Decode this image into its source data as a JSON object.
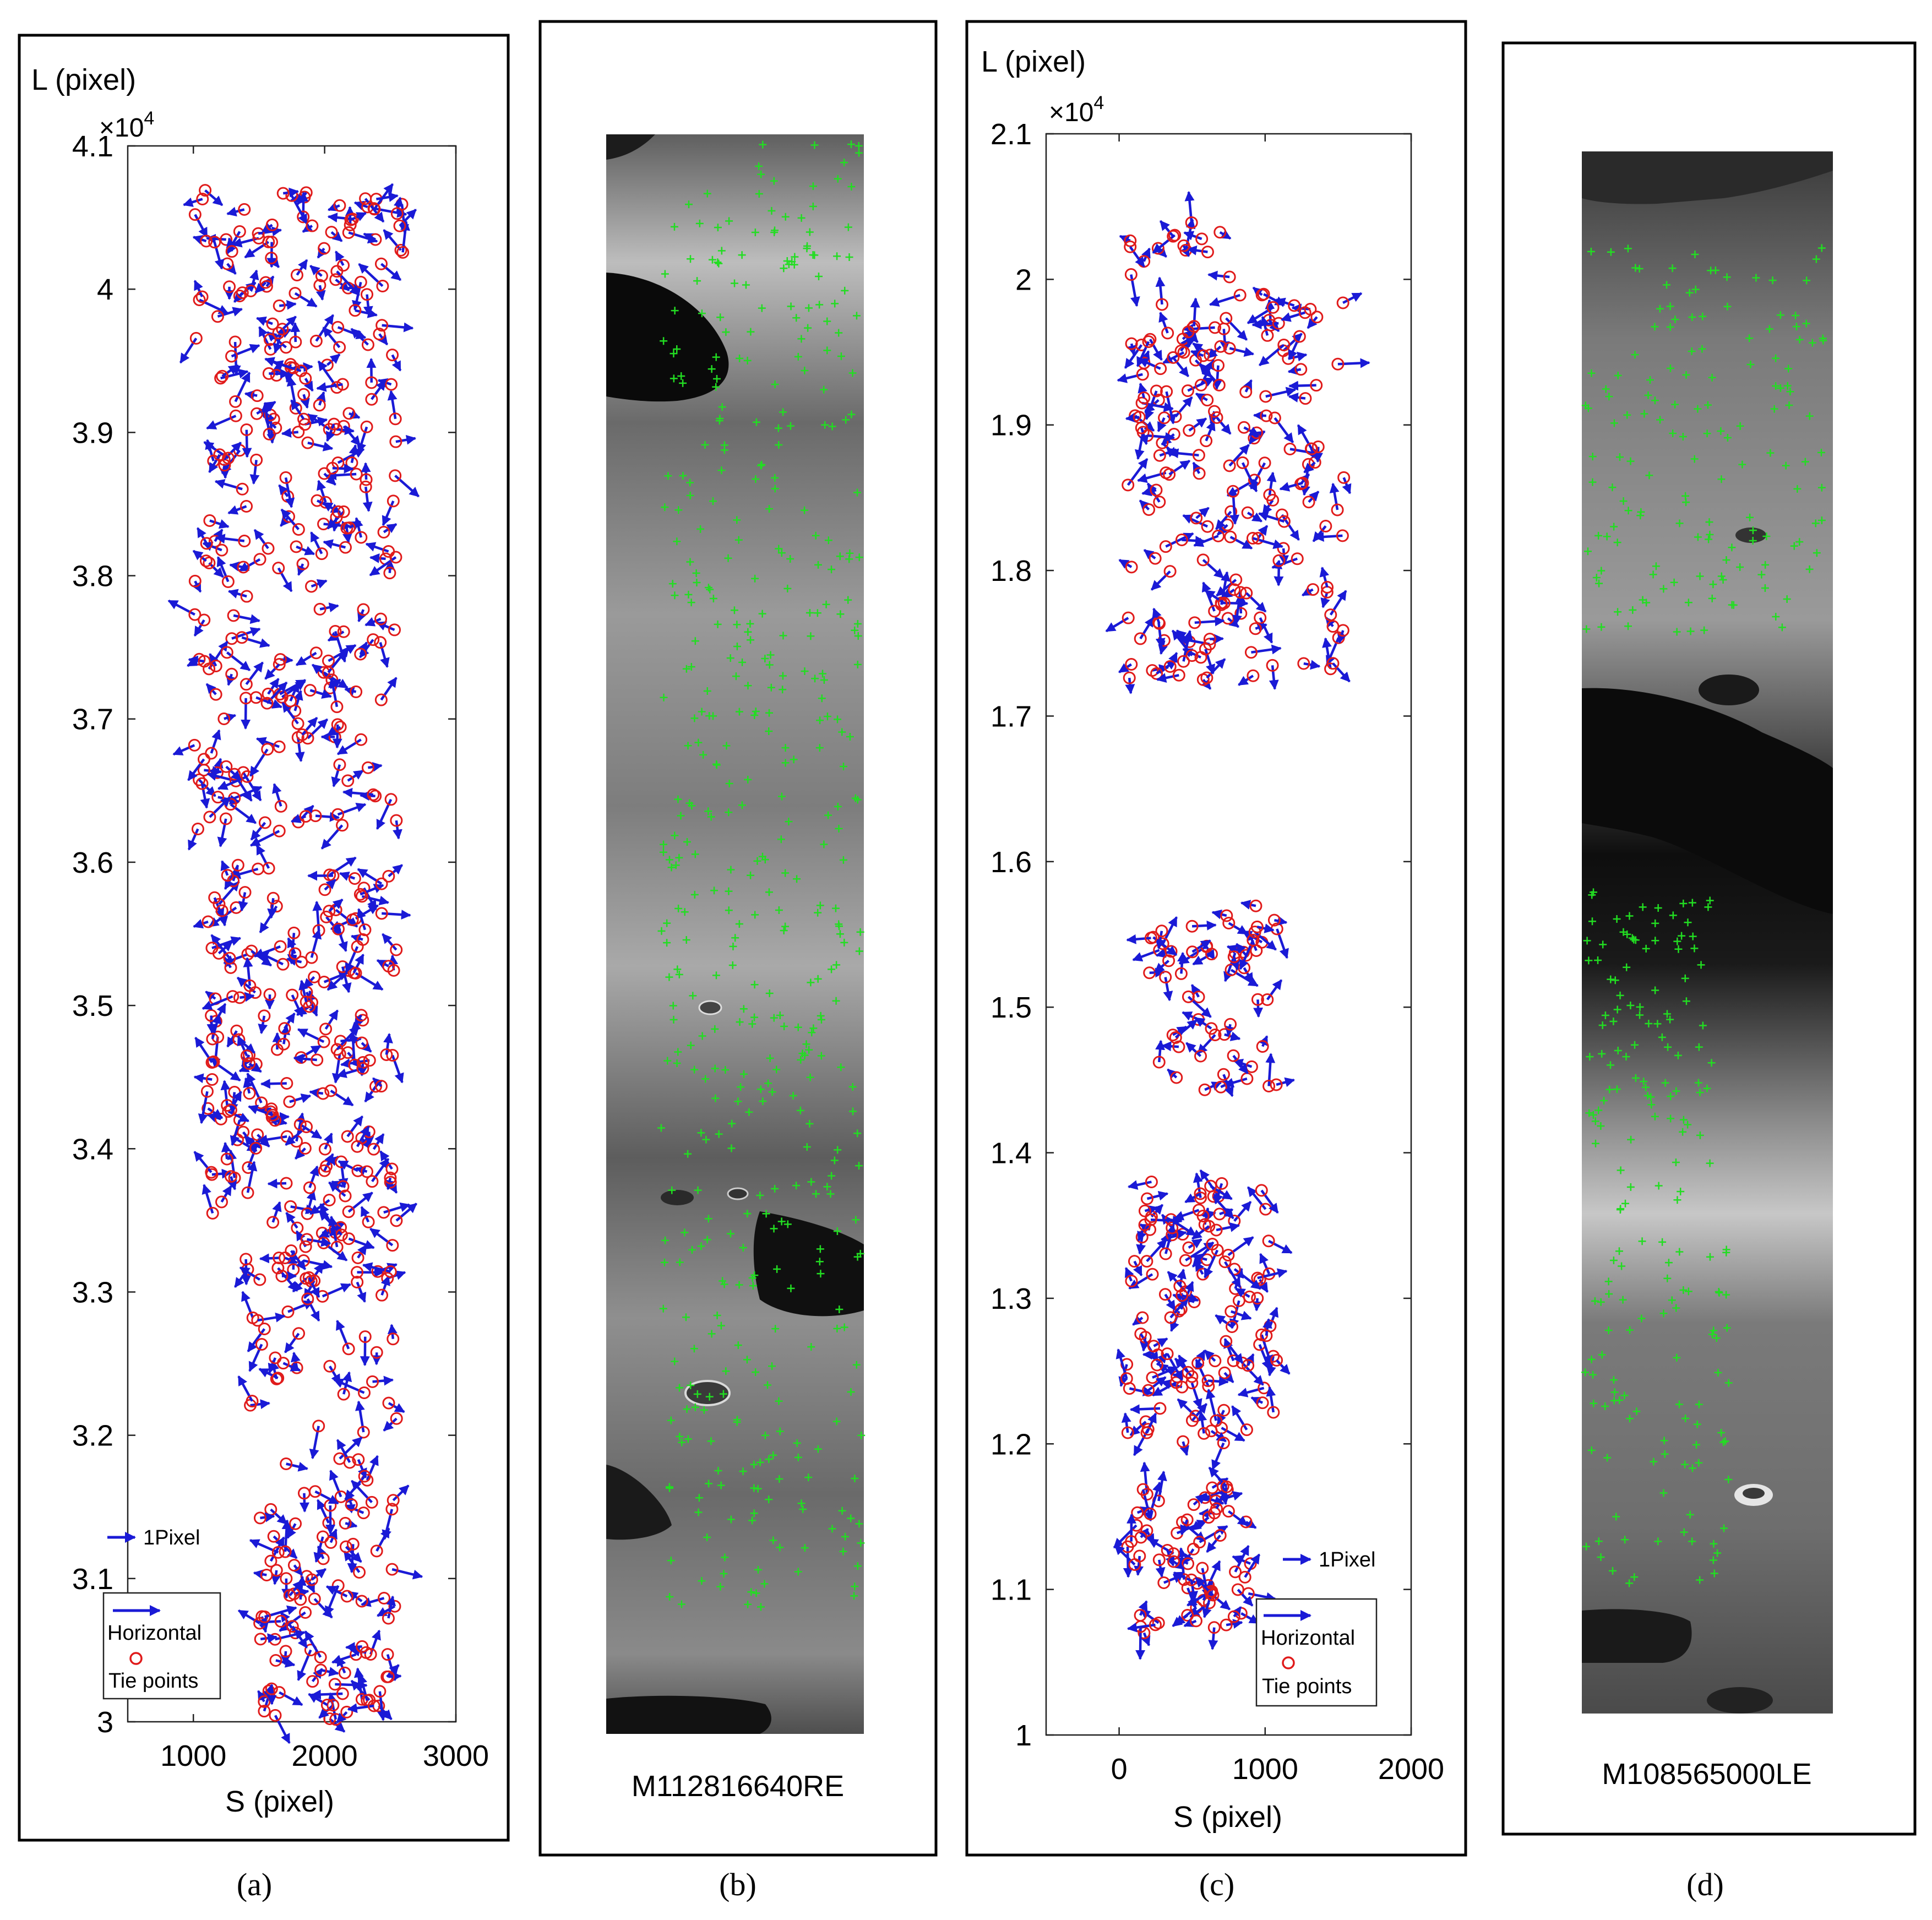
{
  "chart_data": [
    {
      "panel_label": "(a)",
      "type": "scatter",
      "ylabel": "L (pixel)",
      "xlabel": "S (pixel)",
      "y_exponent": "×10",
      "y_exponent_power": "4",
      "xlim": [
        500,
        3000
      ],
      "ylim": [
        3.0,
        4.1
      ],
      "x_ticks": [
        "1000",
        "2000",
        "3000"
      ],
      "x_tick_values": [
        1000,
        2000,
        3000
      ],
      "y_ticks": [
        "3",
        "3.1",
        "3.2",
        "3.3",
        "3.4",
        "3.5",
        "3.6",
        "3.7",
        "3.8",
        "3.9",
        "4",
        "4.1"
      ],
      "y_tick_values": [
        3.0,
        3.1,
        3.2,
        3.3,
        3.4,
        3.5,
        3.6,
        3.7,
        3.8,
        3.9,
        4.0,
        4.1
      ],
      "scale_arrow_label": "1Pixel",
      "legend": {
        "items": [
          "Horizontal",
          "Tie points"
        ],
        "position": "bottom-left"
      },
      "vector_color": "#1a1ad6",
      "point_color": "#e01b1b",
      "clusters": [
        {
          "s_range": [
            1000,
            2600
          ],
          "l_range": [
            3.99,
            4.07
          ],
          "n": 60
        },
        {
          "s_range": [
            1000,
            2550
          ],
          "l_range": [
            3.62,
            3.99
          ],
          "n": 200
        },
        {
          "s_range": [
            1100,
            2550
          ],
          "l_range": [
            3.34,
            3.6
          ],
          "n": 170
        },
        {
          "s_range": [
            1400,
            2550
          ],
          "l_range": [
            3.2,
            3.34
          ],
          "n": 55
        },
        {
          "s_range": [
            1500,
            2550
          ],
          "l_range": [
            3.0,
            3.19
          ],
          "n": 90
        }
      ]
    },
    {
      "panel_label": "(c)",
      "type": "scatter",
      "ylabel": "L (pixel)",
      "xlabel": "S (pixel)",
      "y_exponent": "×10",
      "y_exponent_power": "4",
      "xlim": [
        -500,
        2000
      ],
      "ylim": [
        1.0,
        2.1
      ],
      "x_ticks": [
        "0",
        "1000",
        "2000"
      ],
      "x_tick_values": [
        0,
        1000,
        2000
      ],
      "y_ticks": [
        "1",
        "1.1",
        "1.2",
        "1.3",
        "1.4",
        "1.5",
        "1.6",
        "1.7",
        "1.8",
        "1.9",
        "2",
        "2.1"
      ],
      "y_tick_values": [
        1.0,
        1.1,
        1.2,
        1.3,
        1.4,
        1.5,
        1.6,
        1.7,
        1.8,
        1.9,
        2.0,
        2.1
      ],
      "scale_arrow_label": "1Pixel",
      "legend": {
        "items": [
          "Horizontal",
          "Tie points"
        ],
        "position": "bottom-right"
      },
      "vector_color": "#1a1ad6",
      "point_color": "#e01b1b",
      "clusters": [
        {
          "s_range": [
            50,
            850
          ],
          "l_range": [
            2.0,
            2.04
          ],
          "n": 14
        },
        {
          "s_range": [
            50,
            1550
          ],
          "l_range": [
            1.72,
            1.99
          ],
          "n": 170
        },
        {
          "s_range": [
            200,
            1100
          ],
          "l_range": [
            1.44,
            1.57
          ],
          "n": 55
        },
        {
          "s_range": [
            50,
            1100
          ],
          "l_range": [
            1.2,
            1.38
          ],
          "n": 110
        },
        {
          "s_range": [
            50,
            900
          ],
          "l_range": [
            1.07,
            1.18
          ],
          "n": 65
        }
      ]
    }
  ],
  "panel_b": {
    "panel_label": "(b)",
    "image_name": "M112816640RE",
    "marker_color": "#22dd22",
    "marker_count": 480
  },
  "panel_d": {
    "panel_label": "(d)",
    "image_name": "M108565000LE",
    "marker_color": "#22dd22",
    "marker_count": 330
  }
}
